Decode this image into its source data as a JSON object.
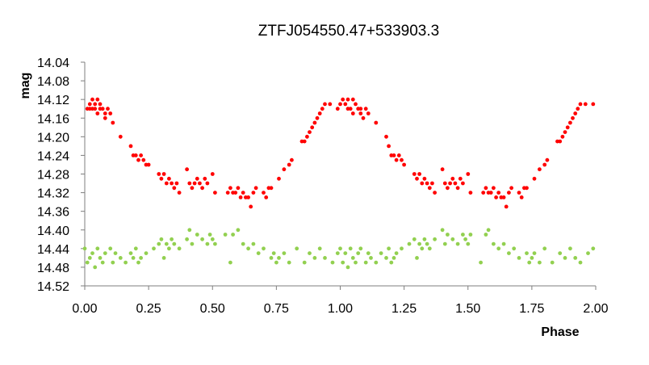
{
  "chart_data": {
    "type": "scatter",
    "title": "ZTFJ054550.47+533903.3",
    "xlabel": "Phase",
    "ylabel": "mag",
    "xlim": [
      0,
      2
    ],
    "ylim": [
      14.04,
      14.52
    ],
    "y_inverted": true,
    "grid": false,
    "legend": "none",
    "x_ticks": [
      "0.00",
      "0.25",
      "0.50",
      "0.75",
      "1.00",
      "1.25",
      "1.50",
      "1.75",
      "2.00"
    ],
    "y_ticks": [
      "14.04",
      "14.08",
      "14.12",
      "14.16",
      "14.20",
      "14.24",
      "14.28",
      "14.32",
      "14.36",
      "14.40",
      "14.44",
      "14.48",
      "14.52"
    ],
    "series": [
      {
        "color": "#ff0000",
        "x": [
          0.01,
          0.02,
          0.02,
          0.03,
          0.03,
          0.04,
          0.04,
          0.05,
          0.05,
          0.06,
          0.06,
          0.07,
          0.08,
          0.08,
          0.09,
          0.1,
          0.11,
          0.14,
          0.18,
          0.19,
          0.2,
          0.21,
          0.22,
          0.23,
          0.24,
          0.25,
          0.29,
          0.3,
          0.31,
          0.32,
          0.33,
          0.34,
          0.35,
          0.36,
          0.37,
          0.4,
          0.41,
          0.42,
          0.43,
          0.44,
          0.45,
          0.46,
          0.47,
          0.48,
          0.5,
          0.51,
          0.56,
          0.57,
          0.58,
          0.59,
          0.6,
          0.61,
          0.62,
          0.63,
          0.64,
          0.65,
          0.66,
          0.67,
          0.7,
          0.71,
          0.72,
          0.73,
          0.76,
          0.78,
          0.8,
          0.81,
          0.85,
          0.86,
          0.87,
          0.88,
          0.89,
          0.9,
          0.91,
          0.92,
          0.93,
          0.94,
          0.96,
          0.99,
          1.0,
          1.01,
          1.02,
          1.03,
          1.03,
          1.04,
          1.05,
          1.05,
          1.06,
          1.07,
          1.08,
          1.08,
          1.09,
          1.1,
          1.11,
          1.14,
          1.18,
          1.19,
          1.2,
          1.21,
          1.22,
          1.23,
          1.24,
          1.25,
          1.29,
          1.3,
          1.31,
          1.32,
          1.33,
          1.34,
          1.35,
          1.36,
          1.37,
          1.4,
          1.41,
          1.42,
          1.43,
          1.44,
          1.45,
          1.46,
          1.47,
          1.48,
          1.5,
          1.51,
          1.56,
          1.57,
          1.58,
          1.59,
          1.6,
          1.61,
          1.62,
          1.63,
          1.64,
          1.65,
          1.66,
          1.67,
          1.7,
          1.71,
          1.72,
          1.73,
          1.76,
          1.78,
          1.8,
          1.81,
          1.85,
          1.86,
          1.87,
          1.88,
          1.89,
          1.9,
          1.91,
          1.92,
          1.93,
          1.94,
          1.96,
          1.99
        ],
        "y": [
          14.14,
          14.13,
          14.14,
          14.12,
          14.14,
          14.13,
          14.14,
          14.12,
          14.15,
          14.13,
          14.14,
          14.14,
          14.15,
          14.16,
          14.14,
          14.15,
          14.17,
          14.2,
          14.22,
          14.24,
          14.24,
          14.25,
          14.24,
          14.25,
          14.26,
          14.26,
          14.28,
          14.29,
          14.28,
          14.3,
          14.29,
          14.3,
          14.31,
          14.3,
          14.32,
          14.27,
          14.3,
          14.31,
          14.3,
          14.29,
          14.3,
          14.31,
          14.29,
          14.3,
          14.28,
          14.32,
          14.32,
          14.31,
          14.32,
          14.32,
          14.31,
          14.33,
          14.32,
          14.33,
          14.33,
          14.35,
          14.32,
          14.31,
          14.32,
          14.33,
          14.31,
          14.31,
          14.29,
          14.27,
          14.26,
          14.25,
          14.21,
          14.21,
          14.2,
          14.19,
          14.18,
          14.17,
          14.16,
          14.15,
          14.14,
          14.13,
          14.13,
          14.14,
          14.13,
          14.12,
          14.13,
          14.14,
          14.12,
          14.14,
          14.12,
          14.15,
          14.13,
          14.14,
          14.14,
          14.15,
          14.16,
          14.14,
          14.15,
          14.17,
          14.2,
          14.22,
          14.24,
          14.24,
          14.25,
          14.24,
          14.25,
          14.26,
          14.28,
          14.29,
          14.28,
          14.3,
          14.29,
          14.3,
          14.31,
          14.3,
          14.32,
          14.27,
          14.3,
          14.31,
          14.3,
          14.29,
          14.3,
          14.31,
          14.29,
          14.3,
          14.28,
          14.32,
          14.32,
          14.31,
          14.32,
          14.32,
          14.31,
          14.33,
          14.32,
          14.33,
          14.33,
          14.35,
          14.32,
          14.31,
          14.32,
          14.33,
          14.31,
          14.31,
          14.29,
          14.27,
          14.26,
          14.25,
          14.21,
          14.21,
          14.2,
          14.19,
          14.18,
          14.17,
          14.16,
          14.15,
          14.14,
          14.13,
          14.13,
          14.13
        ]
      },
      {
        "color": "#92d050",
        "x": [
          0.0,
          0.01,
          0.02,
          0.03,
          0.04,
          0.05,
          0.06,
          0.07,
          0.08,
          0.1,
          0.11,
          0.12,
          0.14,
          0.16,
          0.18,
          0.19,
          0.2,
          0.21,
          0.22,
          0.24,
          0.27,
          0.29,
          0.3,
          0.31,
          0.32,
          0.33,
          0.34,
          0.35,
          0.37,
          0.4,
          0.41,
          0.42,
          0.44,
          0.46,
          0.48,
          0.49,
          0.5,
          0.51,
          0.55,
          0.57,
          0.58,
          0.6,
          0.62,
          0.64,
          0.66,
          0.68,
          0.7,
          0.73,
          0.74,
          0.75,
          0.76,
          0.78,
          0.8,
          0.83,
          0.86,
          0.88,
          0.9,
          0.92,
          0.94,
          0.97,
          0.99,
          1.0,
          1.01,
          1.02,
          1.03,
          1.04,
          1.05,
          1.06,
          1.07,
          1.08,
          1.1,
          1.11,
          1.12,
          1.14,
          1.16,
          1.18,
          1.19,
          1.2,
          1.21,
          1.22,
          1.24,
          1.27,
          1.29,
          1.3,
          1.31,
          1.32,
          1.33,
          1.34,
          1.35,
          1.37,
          1.4,
          1.41,
          1.42,
          1.44,
          1.46,
          1.48,
          1.49,
          1.5,
          1.51,
          1.55,
          1.57,
          1.58,
          1.6,
          1.62,
          1.64,
          1.66,
          1.68,
          1.7,
          1.73,
          1.74,
          1.75,
          1.76,
          1.78,
          1.8,
          1.83,
          1.86,
          1.88,
          1.9,
          1.92,
          1.94,
          1.97,
          1.99
        ],
        "y": [
          14.44,
          14.47,
          14.46,
          14.45,
          14.48,
          14.44,
          14.46,
          14.47,
          14.45,
          14.44,
          14.47,
          14.45,
          14.46,
          14.47,
          14.45,
          14.46,
          14.44,
          14.47,
          14.46,
          14.45,
          14.44,
          14.43,
          14.42,
          14.46,
          14.43,
          14.44,
          14.42,
          14.43,
          14.44,
          14.42,
          14.4,
          14.43,
          14.41,
          14.42,
          14.43,
          14.41,
          14.42,
          14.43,
          14.41,
          14.47,
          14.41,
          14.4,
          14.43,
          14.44,
          14.43,
          14.45,
          14.44,
          14.46,
          14.45,
          14.47,
          14.46,
          14.45,
          14.47,
          14.44,
          14.47,
          14.45,
          14.46,
          14.44,
          14.46,
          14.47,
          14.45,
          14.44,
          14.47,
          14.45,
          14.48,
          14.44,
          14.46,
          14.47,
          14.45,
          14.44,
          14.47,
          14.45,
          14.46,
          14.47,
          14.45,
          14.46,
          14.44,
          14.47,
          14.46,
          14.45,
          14.44,
          14.43,
          14.42,
          14.46,
          14.43,
          14.44,
          14.42,
          14.43,
          14.44,
          14.42,
          14.4,
          14.43,
          14.41,
          14.42,
          14.43,
          14.41,
          14.42,
          14.43,
          14.41,
          14.47,
          14.41,
          14.4,
          14.43,
          14.44,
          14.43,
          14.45,
          14.44,
          14.46,
          14.45,
          14.47,
          14.46,
          14.45,
          14.47,
          14.44,
          14.47,
          14.45,
          14.46,
          14.44,
          14.46,
          14.47,
          14.45,
          14.44
        ]
      }
    ]
  }
}
